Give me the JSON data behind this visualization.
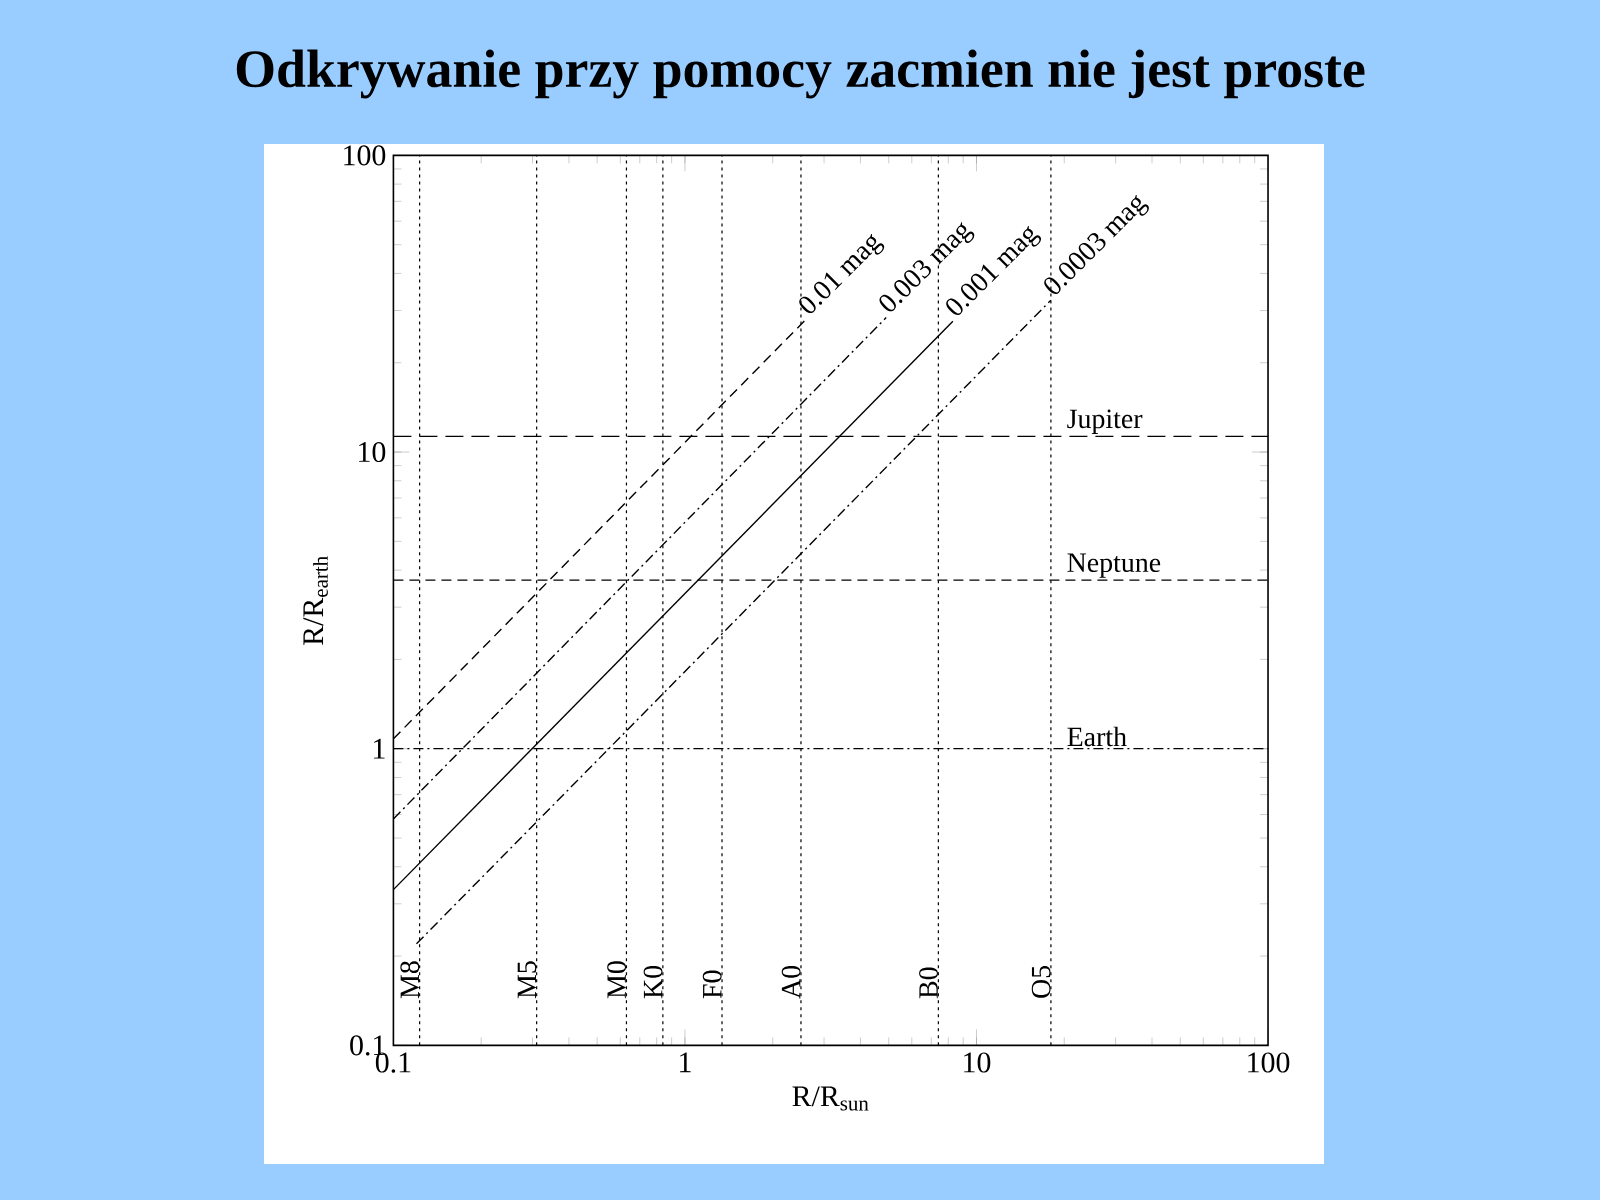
{
  "chart_data": {
    "type": "line",
    "title": "Odkrywanie przy pomocy zacmien nie jest proste",
    "xlabel": "R/R$_{sun}$",
    "ylabel": "R/R$_{earth}$",
    "log": "xy",
    "xlim": [
      0.1,
      100
    ],
    "ylim": [
      0.1,
      100
    ],
    "xticks": [
      0.1,
      1,
      10,
      100
    ],
    "yticks": [
      0.1,
      1,
      10,
      100
    ],
    "series": [
      {
        "name": "0.01 mag",
        "color": "#000000",
        "line_style": "dashed",
        "x": [
          0.1,
          2.6
        ],
        "values": [
          1.08,
          28
        ]
      },
      {
        "name": "0.003 mag",
        "color": "#000000",
        "line_style": "dashdot",
        "x": [
          0.1,
          4.9
        ],
        "values": [
          0.58,
          28.4
        ]
      },
      {
        "name": "0.001 mag",
        "color": "#000000",
        "line_style": "solid",
        "x": [
          0.1,
          8.3
        ],
        "values": [
          0.335,
          27.6
        ]
      },
      {
        "name": "0.0003 mag",
        "color": "#000000",
        "line_style": "dashdot",
        "x": [
          0.12,
          18
        ],
        "values": [
          0.22,
          32.5
        ]
      }
    ],
    "ref_lines": [
      {
        "axis": "x",
        "value": 0.123,
        "label": "M8",
        "line_style": "dotted",
        "color": "#000000"
      },
      {
        "axis": "x",
        "value": 0.31,
        "label": "M5",
        "line_style": "dotted",
        "color": "#000000"
      },
      {
        "axis": "x",
        "value": 0.63,
        "label": "M0",
        "line_style": "dotted",
        "color": "#000000"
      },
      {
        "axis": "x",
        "value": 0.84,
        "label": "K0",
        "line_style": "dotted",
        "color": "#000000"
      },
      {
        "axis": "x",
        "value": 1.34,
        "label": "F0",
        "line_style": "dotted",
        "color": "#000000"
      },
      {
        "axis": "x",
        "value": 2.5,
        "label": "A0",
        "line_style": "dotted",
        "color": "#000000"
      },
      {
        "axis": "x",
        "value": 7.4,
        "label": "B0",
        "line_style": "dotted",
        "color": "#000000"
      },
      {
        "axis": "x",
        "value": 18,
        "label": "O5",
        "line_style": "dotted",
        "color": "#000000"
      },
      {
        "axis": "y",
        "value": 11.3,
        "label": "Jupiter",
        "line_style": "dashed",
        "color": "#000000"
      },
      {
        "axis": "y",
        "value": 3.7,
        "label": "Neptune",
        "line_style": "dashed",
        "color": "#000000"
      },
      {
        "axis": "y",
        "value": 1,
        "label": "Earth",
        "line_style": "dashdot",
        "color": "#000000"
      }
    ]
  }
}
